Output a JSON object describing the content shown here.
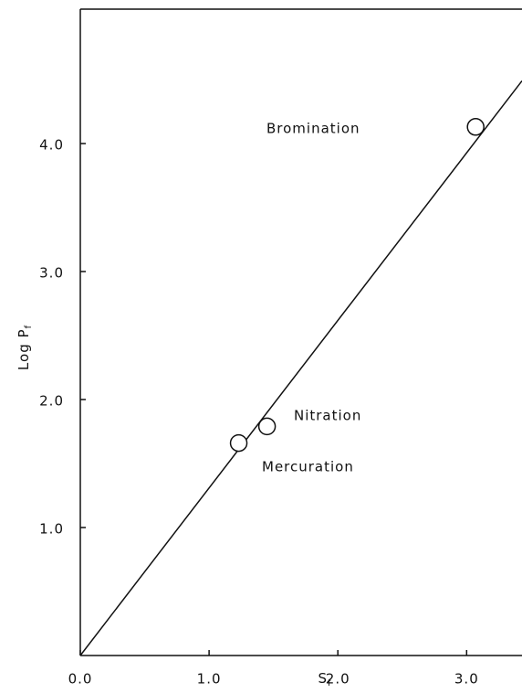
{
  "chart_data": {
    "type": "scatter",
    "x_label": {
      "text": "S",
      "sub": "f"
    },
    "y_label": {
      "text": "Log P",
      "sub": "f"
    },
    "points": {
      "x": [
        1.23,
        1.45,
        3.07
      ],
      "y": [
        1.66,
        1.79,
        4.13
      ]
    },
    "line": {
      "x": [
        0,
        3.43
      ],
      "y": [
        0,
        4.49
      ]
    },
    "annotations": [
      "Bromination",
      "Nitration",
      "Mercuration"
    ],
    "xlim": [
      0,
      3.43
    ],
    "ylim": [
      0,
      5.05
    ],
    "xticks": [
      {
        "value": 0,
        "label": "0.0"
      },
      {
        "value": 1,
        "label": "1.0"
      },
      {
        "value": 2,
        "label": "2.0"
      },
      {
        "value": 3,
        "label": "3.0"
      }
    ],
    "yticks": [
      {
        "value": 1,
        "label": "1.0"
      },
      {
        "value": 2,
        "label": "2.0"
      },
      {
        "value": 3,
        "label": "3.0"
      },
      {
        "value": 4,
        "label": "4.0"
      }
    ]
  }
}
